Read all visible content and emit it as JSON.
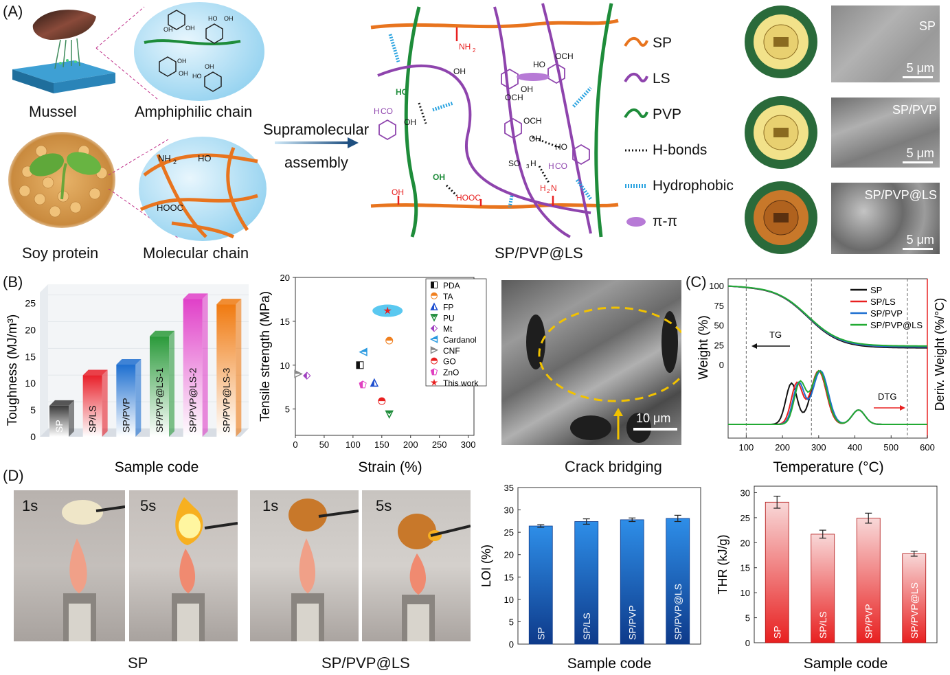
{
  "panels": {
    "A": "(A)",
    "B": "(B)",
    "C": "(C)",
    "D": "(D)"
  },
  "panelA": {
    "mussel": "Mussel",
    "amphiphilic": "Amphiphilic chain",
    "soy": "Soy protein",
    "molecular": "Molecular chain",
    "arrow_top": "Supramolecular",
    "arrow_bottom": "assembly",
    "network_caption": "SP/PVP@LS",
    "legend": [
      {
        "label": "SP",
        "color": "#e8741e",
        "kind": "wave"
      },
      {
        "label": "LS",
        "color": "#8e44ad",
        "kind": "wave"
      },
      {
        "label": "PVP",
        "color": "#1e8c3a",
        "kind": "wave"
      },
      {
        "label": "H-bonds",
        "color": "#111111",
        "kind": "dots"
      },
      {
        "label": "Hydrophobic",
        "color": "#2aa3e0",
        "kind": "dash"
      },
      {
        "label": "π-π",
        "color": "#b77ad6",
        "kind": "ellipse"
      }
    ],
    "sem_labels": [
      "SP",
      "SP/PVP",
      "SP/PVP@LS"
    ],
    "scale": "5 μm",
    "chem": {
      "oh": "OH",
      "ho": "HO",
      "nh2": "NH",
      "sub2": "2",
      "h2n": "H",
      "h2n_n": "N",
      "so3h": "SO",
      "so3h_h": "H",
      "sub3": "3",
      "hooc": "HOOC",
      "och3": "OCH",
      "h3co": "H",
      "h3co_co": "CO"
    }
  },
  "panelB": {
    "toughness": {
      "ylabel": "Toughness (MJ/m³)",
      "xlabel": "Sample code",
      "categories": [
        "SP",
        "SP/LS",
        "SP/PVP",
        "SP/PVP@LS-1",
        "SP/PVP@LS-2",
        "SP/PVP@LS-3"
      ],
      "values": [
        5.8,
        11.5,
        13.5,
        18.8,
        25.8,
        24.8
      ],
      "colors": [
        "#3a3a3a",
        "#e8202a",
        "#1e6fd0",
        "#2a9a3a",
        "#e040c8",
        "#f07a10"
      ],
      "yticks": [
        0,
        5,
        10,
        15,
        20,
        25
      ]
    },
    "scatter": {
      "ylabel": "Tensile strength (MPa)",
      "xlabel": "Strain (%)",
      "xticks": [
        0,
        50,
        100,
        150,
        200,
        250,
        300
      ],
      "yticks": [
        5,
        10,
        15,
        20
      ],
      "points": [
        {
          "name": "PDA",
          "x": 112,
          "y": 10.0,
          "color": "#111111"
        },
        {
          "name": "TA",
          "x": 163,
          "y": 12.8,
          "color": "#f08020"
        },
        {
          "name": "FP",
          "x": 137,
          "y": 8.0,
          "color": "#1e4fd0"
        },
        {
          "name": "PU",
          "x": 163,
          "y": 4.4,
          "color": "#1e8c3a"
        },
        {
          "name": "Mt",
          "x": 20,
          "y": 8.8,
          "color": "#a040c0"
        },
        {
          "name": "Cardanol",
          "x": 118,
          "y": 11.5,
          "color": "#2a9ae0"
        },
        {
          "name": "CNF",
          "x": 5,
          "y": 9.0,
          "color": "#888888"
        },
        {
          "name": "GO",
          "x": 150,
          "y": 5.9,
          "color": "#e82020"
        },
        {
          "name": "ZnO",
          "x": 117,
          "y": 7.8,
          "color": "#e040c0"
        },
        {
          "name": "This work",
          "x": 160,
          "y": 16.2,
          "color": "#e82020"
        }
      ]
    },
    "crack": {
      "caption": "Crack bridging",
      "scale": "10 μm"
    }
  },
  "panelC": {
    "xlabel": "Temperature (°C)",
    "ylabel_left": "Weight (%)",
    "ylabel_right": "Deriv. Weight (%/°C)",
    "xticks": [
      100,
      200,
      300,
      400,
      500,
      600
    ],
    "yticks": [
      0,
      25,
      50,
      75,
      100
    ],
    "tg": "TG",
    "dtg": "DTG",
    "series": [
      {
        "name": "SP",
        "color": "#111111"
      },
      {
        "name": "SP/LS",
        "color": "#e82020"
      },
      {
        "name": "SP/PVP",
        "color": "#1e6fd0"
      },
      {
        "name": "SP/PVP@LS",
        "color": "#22aa33"
      }
    ]
  },
  "panelD": {
    "photo_labels": [
      "1s",
      "5s",
      "1s",
      "5s"
    ],
    "captions": [
      "SP",
      "SP/PVP@LS"
    ],
    "loi": {
      "ylabel": "LOI (%)",
      "xlabel": "Sample code",
      "categories": [
        "SP",
        "SP/LS",
        "SP/PVP",
        "SP/PVP@LS"
      ],
      "values": [
        26.4,
        27.4,
        27.8,
        28.1
      ],
      "errors": [
        0.3,
        0.6,
        0.4,
        0.7
      ],
      "yticks": [
        0,
        5,
        10,
        15,
        20,
        25,
        30,
        35
      ]
    },
    "thr": {
      "ylabel": "THR (kJ/g)",
      "xlabel": "Sample code",
      "categories": [
        "SP",
        "SP/LS",
        "SP/PVP",
        "SP/PVP@LS"
      ],
      "values": [
        28.1,
        21.7,
        24.9,
        17.8
      ],
      "errors": [
        1.2,
        0.8,
        1.0,
        0.5
      ],
      "yticks": [
        0,
        5,
        10,
        15,
        20,
        25,
        30
      ]
    }
  }
}
